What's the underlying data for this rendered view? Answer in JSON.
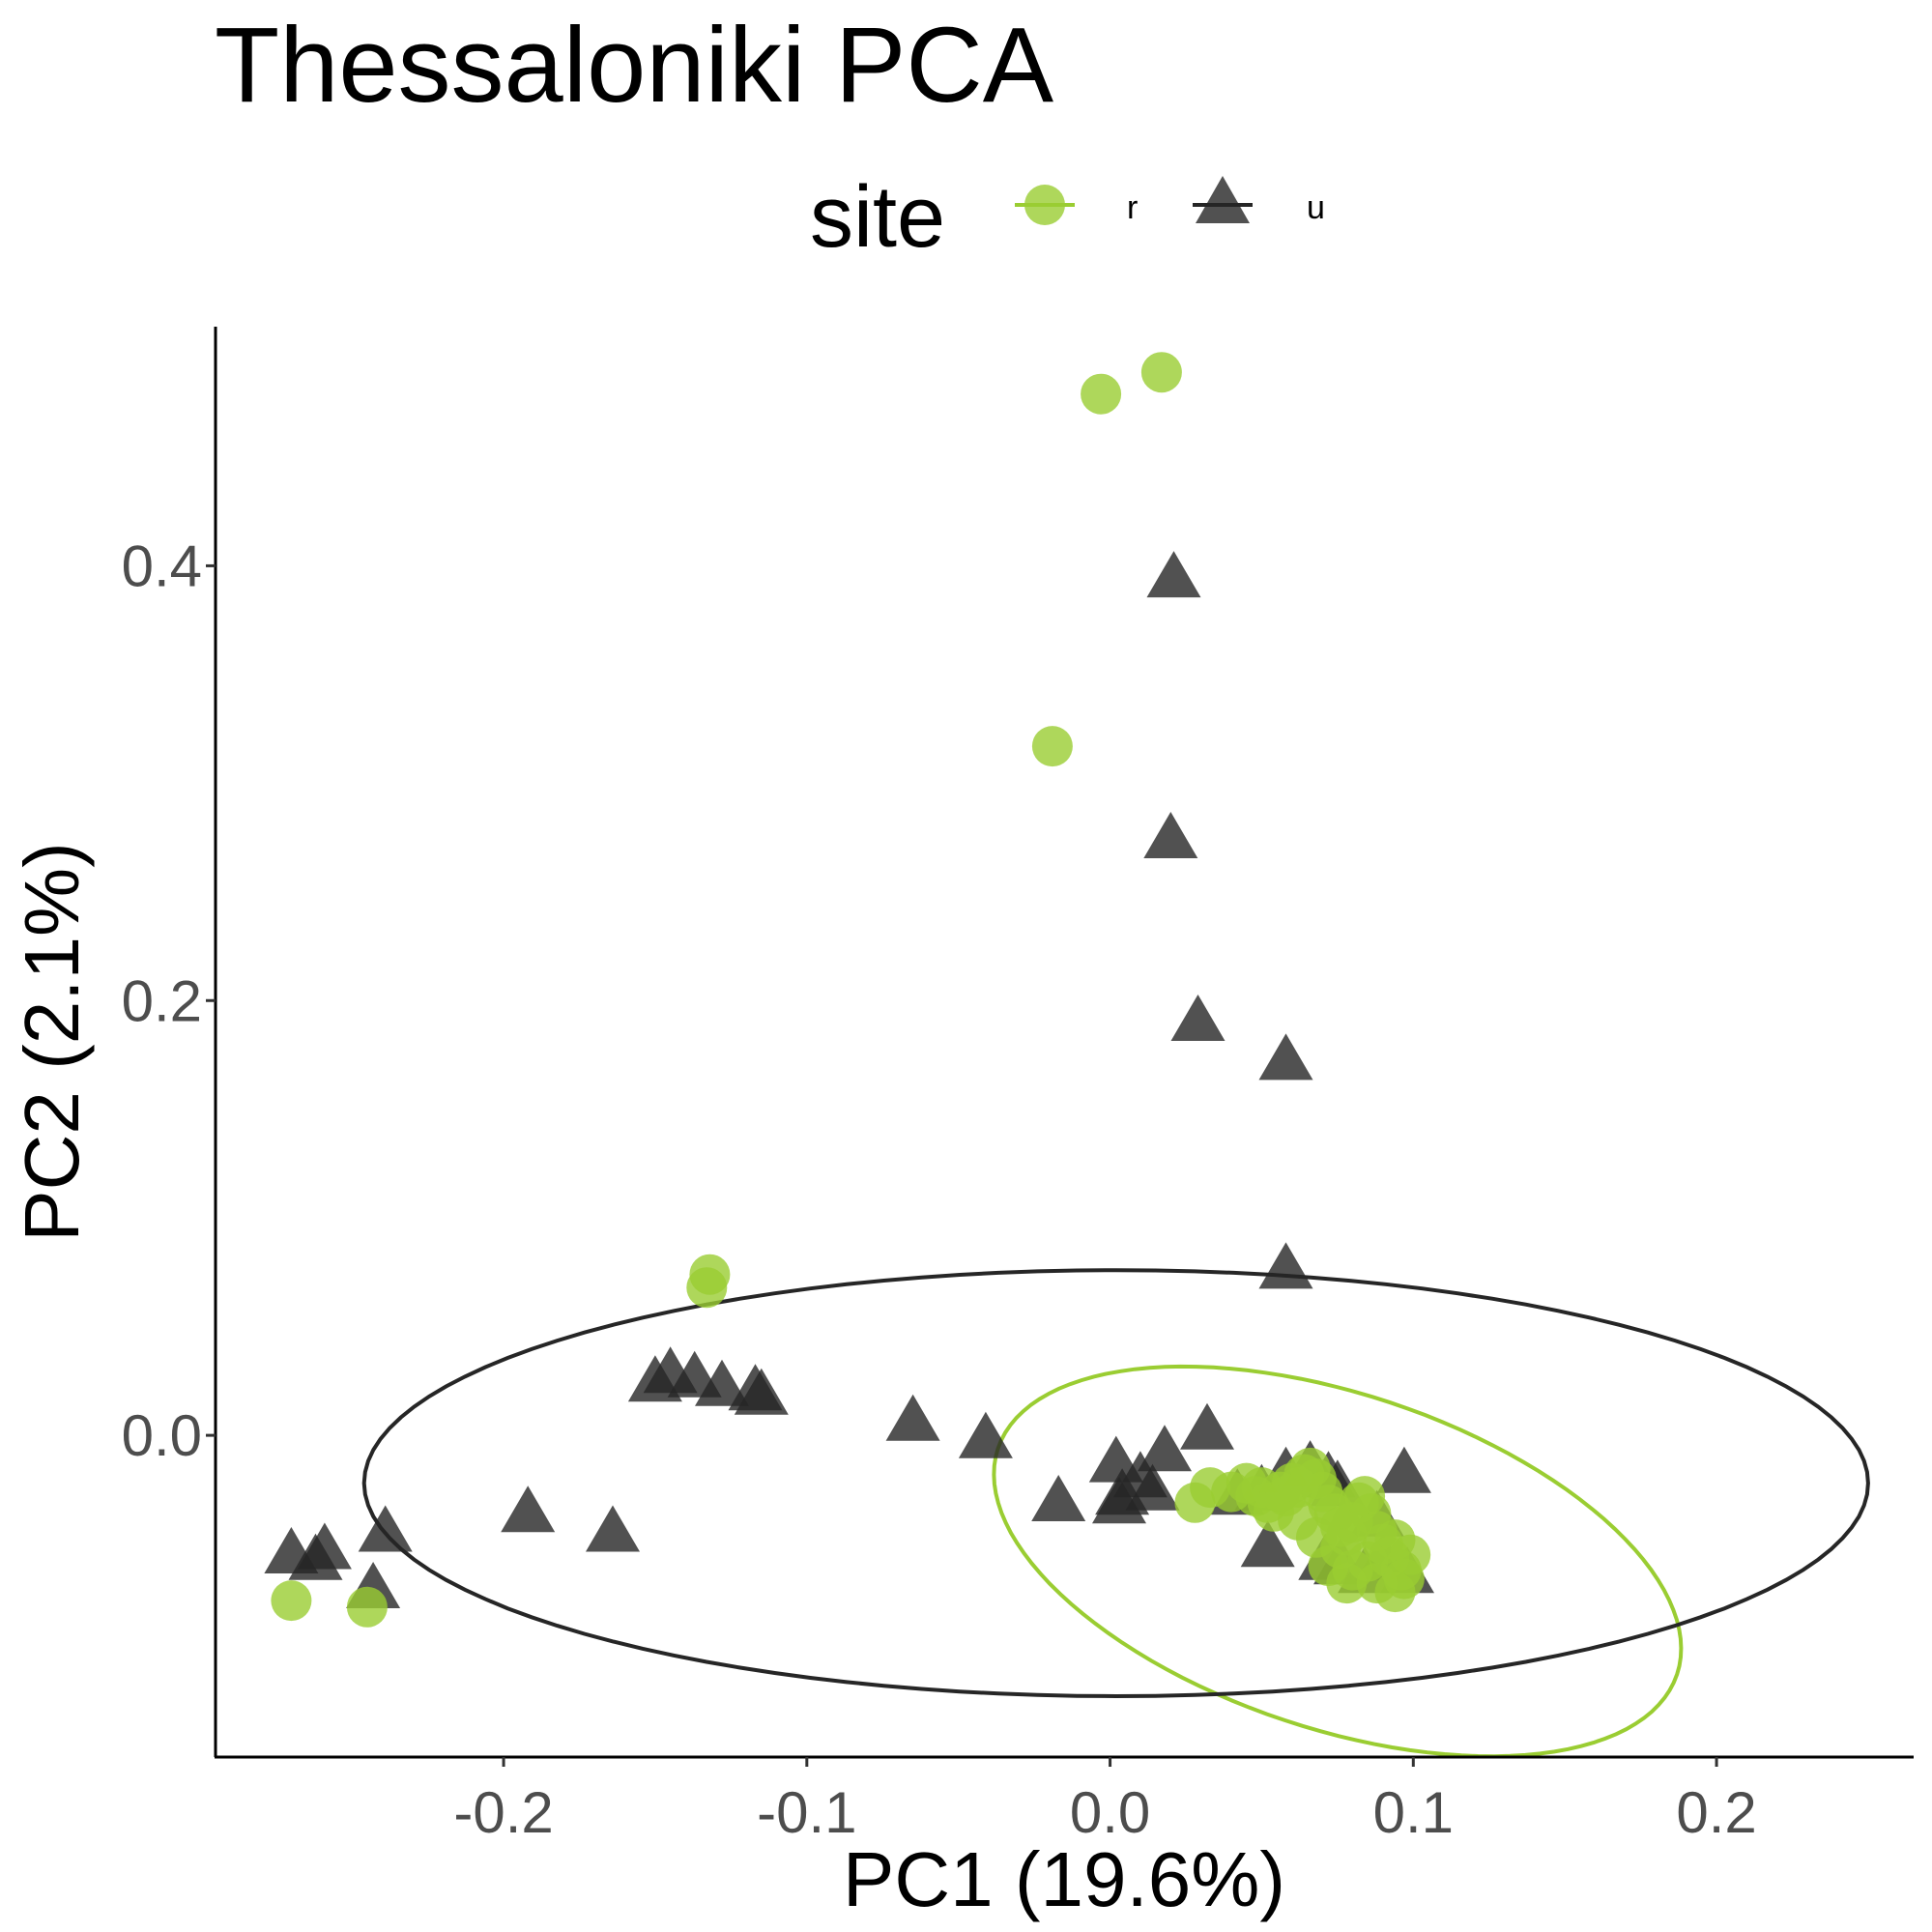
{
  "chart_data": {
    "type": "scatter",
    "title": "Thessaloniki PCA",
    "xlabel": "PC1 (19.6%)",
    "ylabel": "PC2 (2.1%)",
    "xlim": [
      -0.295,
      0.265
    ],
    "ylim": [
      -0.148,
      0.51
    ],
    "x_ticks": [
      -0.2,
      -0.1,
      0.0,
      0.1,
      0.2
    ],
    "x_tick_labels": [
      "-0.2",
      "-0.1",
      "0.0",
      "0.1",
      "0.2"
    ],
    "y_ticks": [
      0.0,
      0.2,
      0.4
    ],
    "y_tick_labels": [
      "0.0",
      "0.2",
      "0.4"
    ],
    "grid": false,
    "legend": {
      "title": "site",
      "position": "top",
      "entries": [
        {
          "label": "r",
          "shape": "circle",
          "color": "#9acd32"
        },
        {
          "label": "u",
          "shape": "triangle",
          "color": "#262626"
        }
      ]
    },
    "series": [
      {
        "name": "r",
        "shape": "circle",
        "color": "#9acd32",
        "opacity": 0.8,
        "ellipse": {
          "cx": 0.075,
          "cy": -0.058,
          "rx": 0.118,
          "ry": 0.077,
          "angle_deg": -18.4
        },
        "points": [
          [
            0.017,
            0.489
          ],
          [
            -0.003,
            0.479
          ],
          [
            -0.019,
            0.317
          ],
          [
            -0.132,
            0.074
          ],
          [
            -0.133,
            0.068
          ],
          [
            -0.27,
            -0.076
          ],
          [
            -0.245,
            -0.079
          ],
          [
            0.028,
            -0.031
          ],
          [
            0.033,
            -0.024
          ],
          [
            0.04,
            -0.026
          ],
          [
            0.045,
            -0.022
          ],
          [
            0.048,
            -0.028
          ],
          [
            0.05,
            -0.024
          ],
          [
            0.052,
            -0.031
          ],
          [
            0.054,
            -0.035
          ],
          [
            0.056,
            -0.026
          ],
          [
            0.058,
            -0.028
          ],
          [
            0.06,
            -0.022
          ],
          [
            0.062,
            -0.024
          ],
          [
            0.064,
            -0.018
          ],
          [
            0.066,
            -0.015
          ],
          [
            0.068,
            -0.02
          ],
          [
            0.07,
            -0.026
          ],
          [
            0.072,
            -0.032
          ],
          [
            0.074,
            -0.036
          ],
          [
            0.076,
            -0.042
          ],
          [
            0.078,
            -0.046
          ],
          [
            0.08,
            -0.04
          ],
          [
            0.082,
            -0.031
          ],
          [
            0.084,
            -0.028
          ],
          [
            0.086,
            -0.036
          ],
          [
            0.088,
            -0.044
          ],
          [
            0.09,
            -0.05
          ],
          [
            0.092,
            -0.056
          ],
          [
            0.094,
            -0.048
          ],
          [
            0.096,
            -0.062
          ],
          [
            0.097,
            -0.066
          ],
          [
            0.099,
            -0.055
          ],
          [
            0.085,
            -0.058
          ],
          [
            0.08,
            -0.062
          ],
          [
            0.076,
            -0.052
          ],
          [
            0.072,
            -0.06
          ],
          [
            0.068,
            -0.047
          ],
          [
            0.062,
            -0.039
          ],
          [
            0.088,
            -0.068
          ],
          [
            0.094,
            -0.072
          ],
          [
            0.078,
            -0.068
          ]
        ]
      },
      {
        "name": "u",
        "shape": "triangle",
        "color": "#262626",
        "opacity": 0.8,
        "ellipse": {
          "cx": 0.002,
          "cy": -0.022,
          "rx": 0.248,
          "ry": 0.098,
          "angle_deg": 0
        },
        "points": [
          [
            0.021,
            0.394
          ],
          [
            0.02,
            0.274
          ],
          [
            0.029,
            0.19
          ],
          [
            0.058,
            0.172
          ],
          [
            0.058,
            0.076
          ],
          [
            -0.145,
            0.028
          ],
          [
            -0.15,
            0.024
          ],
          [
            -0.137,
            0.026
          ],
          [
            -0.128,
            0.022
          ],
          [
            -0.117,
            0.02
          ],
          [
            -0.115,
            0.018
          ],
          [
            -0.065,
            0.006
          ],
          [
            -0.041,
            -0.002
          ],
          [
            0.032,
            0.002
          ],
          [
            0.018,
            -0.008
          ],
          [
            0.002,
            -0.013
          ],
          [
            0.01,
            -0.02
          ],
          [
            0.014,
            -0.026
          ],
          [
            0.004,
            -0.028
          ],
          [
            0.003,
            -0.032
          ],
          [
            -0.017,
            -0.031
          ],
          [
            0.042,
            -0.028
          ],
          [
            0.05,
            -0.026
          ],
          [
            0.058,
            -0.018
          ],
          [
            0.066,
            -0.015
          ],
          [
            0.072,
            -0.02
          ],
          [
            0.075,
            -0.024
          ],
          [
            0.097,
            -0.018
          ],
          [
            0.088,
            -0.038
          ],
          [
            0.052,
            -0.052
          ],
          [
            0.071,
            -0.058
          ],
          [
            0.084,
            -0.064
          ],
          [
            0.098,
            -0.064
          ],
          [
            0.09,
            -0.058
          ],
          [
            0.076,
            -0.06
          ],
          [
            -0.192,
            -0.036
          ],
          [
            -0.164,
            -0.045
          ],
          [
            -0.239,
            -0.045
          ],
          [
            -0.27,
            -0.055
          ],
          [
            -0.259,
            -0.053
          ],
          [
            -0.262,
            -0.058
          ],
          [
            -0.243,
            -0.071
          ]
        ]
      }
    ]
  }
}
